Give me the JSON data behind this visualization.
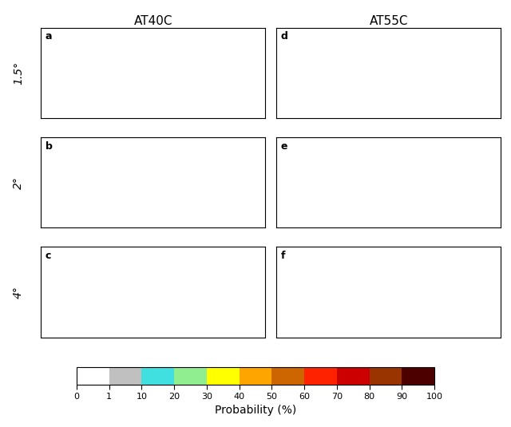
{
  "title_left": "AT40C",
  "title_right": "AT55C",
  "row_labels": [
    "1.5°",
    "2°",
    "4°"
  ],
  "panel_labels": [
    "a",
    "b",
    "c",
    "d",
    "e",
    "f"
  ],
  "colorbar_ticks": [
    0,
    1,
    10,
    20,
    30,
    40,
    50,
    60,
    70,
    80,
    90,
    100
  ],
  "colorbar_label": "Probability (%)",
  "colorbar_colors": [
    "#ffffff",
    "#c0c0c0",
    "#40e0e0",
    "#90ee90",
    "#ffff00",
    "#ffa500",
    "#cd6600",
    "#ff2200",
    "#cc0000",
    "#993300",
    "#4d0000"
  ],
  "background_color": "#ffffff",
  "map_background": "#ffffff",
  "land_no_data": "#ffffff",
  "ocean_color": "#ffffff",
  "figsize": [
    6.4,
    5.35
  ],
  "dpi": 100
}
